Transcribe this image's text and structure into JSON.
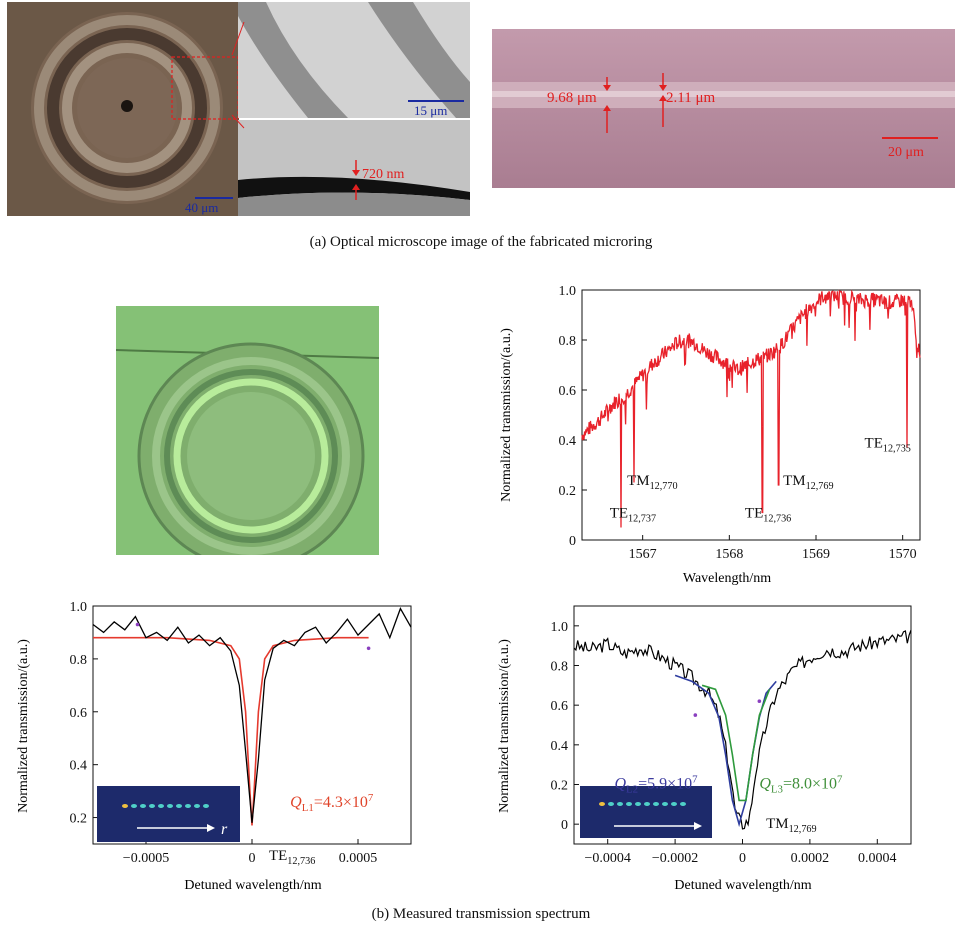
{
  "panel_a": {
    "scale_ring": "40 μm",
    "scale_zoom": "15 μm",
    "film_thickness": "720 nm",
    "waveguide_width": "9.68 μm",
    "gap_width": "2.11 μm",
    "scale_waveguide": "20 μm",
    "caption": "(a) Optical microscope image of the fabricated microring"
  },
  "panel_b_caption": "(b) Measured transmission spectrum",
  "colors": {
    "spectrum": "#e8222b",
    "measured": "#000000",
    "fit_red": "#e53a2e",
    "fit_blue": "#2f3ea0",
    "fit_green": "#2e9a3c",
    "q_red": "#e0442a",
    "q_blue": "#3b3a9e",
    "q_green": "#3f8f3a",
    "photo_ring": "#6fbf60",
    "inset_bg": "#1d2a6b"
  },
  "chart_data": [
    {
      "type": "line",
      "xlabel": "Wavelength/nm",
      "ylabel": "Normalized transmission/(a.u.)",
      "xlim": [
        1566.3,
        1570.2
      ],
      "ylim": [
        0,
        1.0
      ],
      "xticks": [
        "1567",
        "1568",
        "1569",
        "1570"
      ],
      "yticks": [
        "0",
        "0.2",
        "0.4",
        "0.6",
        "0.8",
        "1.0"
      ],
      "series": [
        {
          "x": [
            1566.3,
            1566.4,
            1566.5,
            1566.6,
            1566.7,
            1566.8,
            1566.9,
            1567.0,
            1567.1,
            1567.2,
            1567.3,
            1567.4,
            1567.5,
            1567.6,
            1567.7,
            1567.8,
            1567.9,
            1568.0,
            1568.1,
            1568.2,
            1568.3,
            1568.4,
            1568.5,
            1568.6,
            1568.7,
            1568.8,
            1568.9,
            1569.0,
            1569.1,
            1569.2,
            1569.3,
            1569.4,
            1569.5,
            1569.6,
            1569.7,
            1569.8,
            1569.9,
            1570.0,
            1570.1,
            1570.2
          ],
          "y": [
            0.42,
            0.45,
            0.48,
            0.52,
            0.56,
            0.58,
            0.62,
            0.66,
            0.7,
            0.73,
            0.76,
            0.79,
            0.8,
            0.79,
            0.76,
            0.74,
            0.72,
            0.7,
            0.68,
            0.7,
            0.72,
            0.73,
            0.75,
            0.78,
            0.83,
            0.88,
            0.92,
            0.95,
            0.98,
            0.98,
            0.97,
            0.97,
            0.96,
            0.96,
            0.96,
            0.95,
            0.95,
            0.96,
            0.96,
            0.72
          ]
        }
      ],
      "dips": [
        {
          "x": 1566.75,
          "y": 0.05
        },
        {
          "x": 1566.9,
          "y": 0.23
        },
        {
          "x": 1568.38,
          "y": 0.11
        },
        {
          "x": 1568.57,
          "y": 0.22
        },
        {
          "x": 1570.05,
          "y": 0.37
        }
      ],
      "annotations": [
        {
          "main": "TM",
          "sub": "12,770",
          "x": 1566.82,
          "y": 0.22
        },
        {
          "main": "TE",
          "sub": "12,737",
          "x": 1566.62,
          "y": 0.09
        },
        {
          "main": "TM",
          "sub": "12,769",
          "x": 1568.62,
          "y": 0.22
        },
        {
          "main": "TE",
          "sub": "12,736",
          "x": 1568.18,
          "y": 0.09
        },
        {
          "main": "TE",
          "sub": "12,735",
          "x": 1569.56,
          "y": 0.37
        }
      ]
    },
    {
      "type": "line",
      "xlabel": "Detuned wavelength/nm",
      "ylabel": "Normalized transmission/(a.u.)",
      "xlim": [
        -0.00075,
        0.00075
      ],
      "ylim": [
        0.1,
        1.0
      ],
      "xticks": [
        "-0.0005",
        "0",
        "0.0005"
      ],
      "yticks": [
        "0.2",
        "0.4",
        "0.6",
        "0.8",
        "1.0"
      ],
      "series": [
        {
          "x": [
            -0.00075,
            -0.0007,
            -0.00065,
            -0.0006,
            -0.00055,
            -0.0005,
            -0.00045,
            -0.0004,
            -0.00035,
            -0.0003,
            -0.00025,
            -0.0002,
            -0.00015,
            -0.0001,
            -6e-05,
            -3e-05,
            0,
            3e-05,
            6e-05,
            0.0001,
            0.00015,
            0.0002,
            0.00025,
            0.0003,
            0.00035,
            0.0004,
            0.00045,
            0.0005,
            0.00055,
            0.0006,
            0.00065,
            0.0007,
            0.00075
          ],
          "y": [
            0.93,
            0.9,
            0.94,
            0.91,
            0.96,
            0.88,
            0.9,
            0.87,
            0.92,
            0.86,
            0.89,
            0.85,
            0.88,
            0.83,
            0.7,
            0.45,
            0.18,
            0.42,
            0.72,
            0.84,
            0.87,
            0.85,
            0.9,
            0.92,
            0.86,
            0.9,
            0.95,
            0.89,
            0.93,
            0.97,
            0.88,
            0.99,
            0.92
          ]
        },
        {
          "x": [
            -0.00075,
            -0.0004,
            -0.0002,
            -0.0001,
            -6e-05,
            -3e-05,
            -1e-05,
            0,
            1e-05,
            3e-05,
            6e-05,
            0.0001,
            0.0002,
            0.0004,
            0.00055
          ],
          "y": [
            0.88,
            0.88,
            0.87,
            0.85,
            0.8,
            0.6,
            0.3,
            0.17,
            0.3,
            0.6,
            0.8,
            0.85,
            0.87,
            0.88,
            0.88
          ]
        }
      ],
      "inset_label": "r",
      "q_label": {
        "prefix": "Q",
        "sub": "L1",
        "value": "=4.3×10",
        "exp": "7"
      },
      "mode_label": {
        "main": "TE",
        "sub": "12,736"
      }
    },
    {
      "type": "line",
      "xlabel": "Detuned wavelength/nm",
      "ylabel": "Normalized transmission/(a.u.)",
      "xlim": [
        -0.0005,
        0.0005
      ],
      "ylim": [
        -0.1,
        1.1
      ],
      "xticks": [
        "-0.0004",
        "-0.0002",
        "0",
        "0.0002",
        "0.0004"
      ],
      "yticks": [
        "0",
        "0.2",
        "0.4",
        "0.6",
        "0.8",
        "1.0"
      ],
      "series": [
        {
          "x": [
            -0.0005,
            -0.00045,
            -0.0004,
            -0.00035,
            -0.0003,
            -0.00025,
            -0.0002,
            -0.00015,
            -0.0001,
            -7e-05,
            -4e-05,
            -2e-05,
            0,
            2e-05,
            4e-05,
            7e-05,
            0.0001,
            0.00015,
            0.0002,
            0.00025,
            0.0003,
            0.00035,
            0.0004,
            0.00045,
            0.0005
          ],
          "y": [
            0.9,
            0.88,
            0.91,
            0.86,
            0.89,
            0.85,
            0.8,
            0.74,
            0.66,
            0.55,
            0.3,
            0.05,
            0.0,
            0.02,
            0.28,
            0.5,
            0.66,
            0.78,
            0.84,
            0.88,
            0.87,
            0.9,
            0.92,
            0.93,
            0.95
          ]
        },
        {
          "x": [
            -0.0002,
            -0.00015,
            -0.0001,
            -7e-05,
            -5e-05,
            -3e-05,
            -1e-05,
            1e-05,
            3e-05,
            5e-05,
            7e-05,
            0.0001
          ],
          "y": [
            0.75,
            0.72,
            0.66,
            0.54,
            0.35,
            0.12,
            0.0,
            0.12,
            0.35,
            0.54,
            0.66,
            0.72
          ]
        },
        {
          "x": [
            -0.00012,
            -8e-05,
            -5e-05,
            -3e-05,
            -1e-05,
            1e-05,
            3e-05,
            5e-05,
            8e-05
          ],
          "y": [
            0.7,
            0.68,
            0.55,
            0.35,
            0.12,
            0.12,
            0.35,
            0.55,
            0.68
          ]
        }
      ],
      "q_label_blue": {
        "prefix": "Q",
        "sub": "L2",
        "value": "=5.9×10",
        "exp": "7"
      },
      "q_label_green": {
        "prefix": "Q",
        "sub": "L3",
        "value": "=8.0×10",
        "exp": "7"
      },
      "mode_label": {
        "main": "TM",
        "sub": "12,769"
      }
    }
  ]
}
